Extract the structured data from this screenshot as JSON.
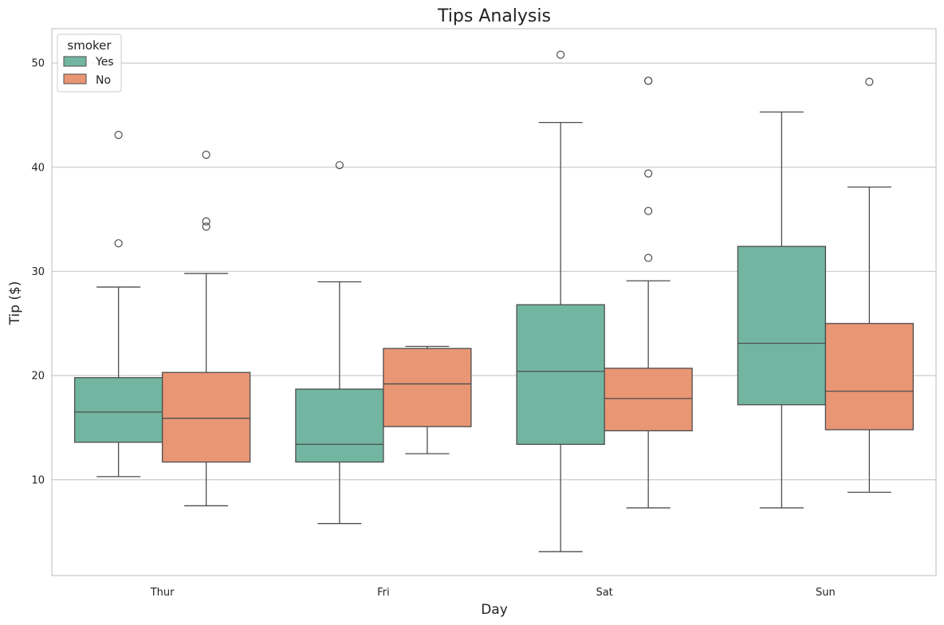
{
  "chart_data": {
    "type": "boxplot",
    "title": "Tips Analysis",
    "xlabel": "Day",
    "ylabel": "Tip ($)",
    "categories": [
      "Thur",
      "Fri",
      "Sat",
      "Sun"
    ],
    "yticks": [
      10,
      20,
      30,
      40,
      50
    ],
    "ylim": [
      0.8,
      53.3
    ],
    "grid": "horizontal",
    "legend": {
      "title": "smoker",
      "placement": "top-left",
      "entries": [
        "Yes",
        "No"
      ]
    },
    "series": [
      {
        "name": "Yes",
        "color": "#72b6a1",
        "boxes": [
          {
            "whisker_low": 10.3,
            "q1": 13.6,
            "median": 16.5,
            "q3": 19.8,
            "whisker_high": 28.5,
            "outliers": [
              32.7,
              43.1
            ]
          },
          {
            "whisker_low": 5.8,
            "q1": 11.7,
            "median": 13.4,
            "q3": 18.7,
            "whisker_high": 29.0,
            "outliers": [
              40.2
            ]
          },
          {
            "whisker_low": 3.1,
            "q1": 13.4,
            "median": 20.4,
            "q3": 26.8,
            "whisker_high": 44.3,
            "outliers": [
              50.8
            ]
          },
          {
            "whisker_low": 7.3,
            "q1": 17.2,
            "median": 23.1,
            "q3": 32.4,
            "whisker_high": 45.3,
            "outliers": []
          }
        ]
      },
      {
        "name": "No",
        "color": "#e99675",
        "boxes": [
          {
            "whisker_low": 7.5,
            "q1": 11.7,
            "median": 15.9,
            "q3": 20.3,
            "whisker_high": 29.8,
            "outliers": [
              34.3,
              34.8,
              41.2
            ]
          },
          {
            "whisker_low": 12.5,
            "q1": 15.1,
            "median": 19.2,
            "q3": 22.6,
            "whisker_high": 22.8,
            "outliers": []
          },
          {
            "whisker_low": 7.3,
            "q1": 14.7,
            "median": 17.8,
            "q3": 20.7,
            "whisker_high": 29.1,
            "outliers": [
              31.3,
              35.8,
              39.4,
              48.3,
              48.3
            ]
          },
          {
            "whisker_low": 8.8,
            "q1": 14.8,
            "median": 18.5,
            "q3": 25.0,
            "whisker_high": 38.1,
            "outliers": [
              48.2
            ]
          }
        ]
      }
    ]
  }
}
